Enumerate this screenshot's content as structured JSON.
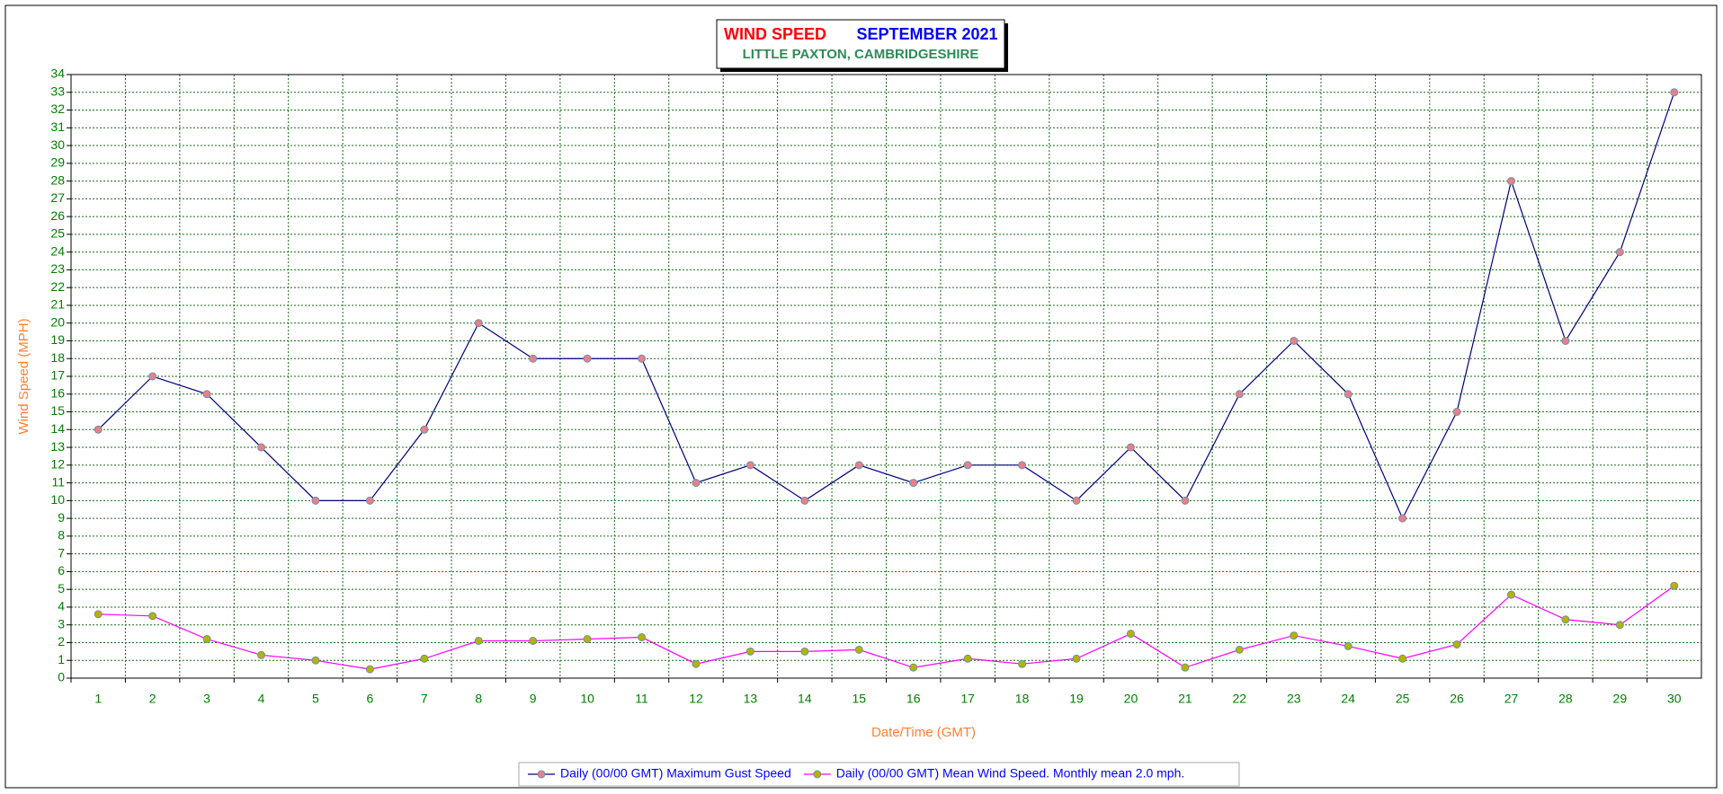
{
  "chart_data": {
    "type": "line",
    "title": "WIND SPEED",
    "title2": "SEPTEMBER 2021",
    "subtitle": "LITTLE PAXTON, CAMBRIDGESHIRE",
    "x_label": "Date/Time (GMT)",
    "y_label": "Wind Speed (MPH)",
    "categories": [
      "1",
      "2",
      "3",
      "4",
      "5",
      "6",
      "7",
      "8",
      "9",
      "10",
      "11",
      "12",
      "13",
      "14",
      "15",
      "16",
      "17",
      "18",
      "19",
      "20",
      "21",
      "22",
      "23",
      "24",
      "25",
      "26",
      "27",
      "28",
      "29",
      "30"
    ],
    "series": [
      {
        "name": "Daily (00/00 GMT) Maximum Gust Speed",
        "color": "#000080",
        "marker_color": "#e8808c",
        "values": [
          14,
          17,
          16,
          13,
          10,
          10,
          14,
          20,
          18,
          18,
          18,
          11,
          12,
          10,
          12,
          11,
          12,
          12,
          10,
          13,
          10,
          16,
          19,
          16,
          9,
          15,
          28,
          19,
          24,
          33
        ]
      },
      {
        "name": "Daily (00/00 GMT) Mean Wind Speed. Monthly mean 2.0 mph.",
        "color": "#ff00ff",
        "marker_color": "#b4b400",
        "values": [
          3.6,
          3.5,
          2.2,
          1.3,
          1.0,
          0.5,
          1.1,
          2.1,
          2.1,
          2.2,
          2.3,
          0.8,
          1.5,
          1.5,
          1.6,
          0.6,
          1.1,
          0.8,
          1.1,
          2.5,
          0.6,
          1.6,
          2.4,
          1.8,
          1.1,
          1.9,
          4.7,
          3.3,
          3.0,
          5.2
        ]
      }
    ],
    "ylim": [
      0,
      34
    ],
    "yticks": [
      0,
      1,
      2,
      3,
      4,
      5,
      6,
      7,
      8,
      9,
      10,
      11,
      12,
      13,
      14,
      15,
      16,
      17,
      18,
      19,
      20,
      21,
      22,
      23,
      24,
      25,
      26,
      27,
      28,
      29,
      30,
      31,
      32,
      33,
      34
    ],
    "grid": true
  }
}
